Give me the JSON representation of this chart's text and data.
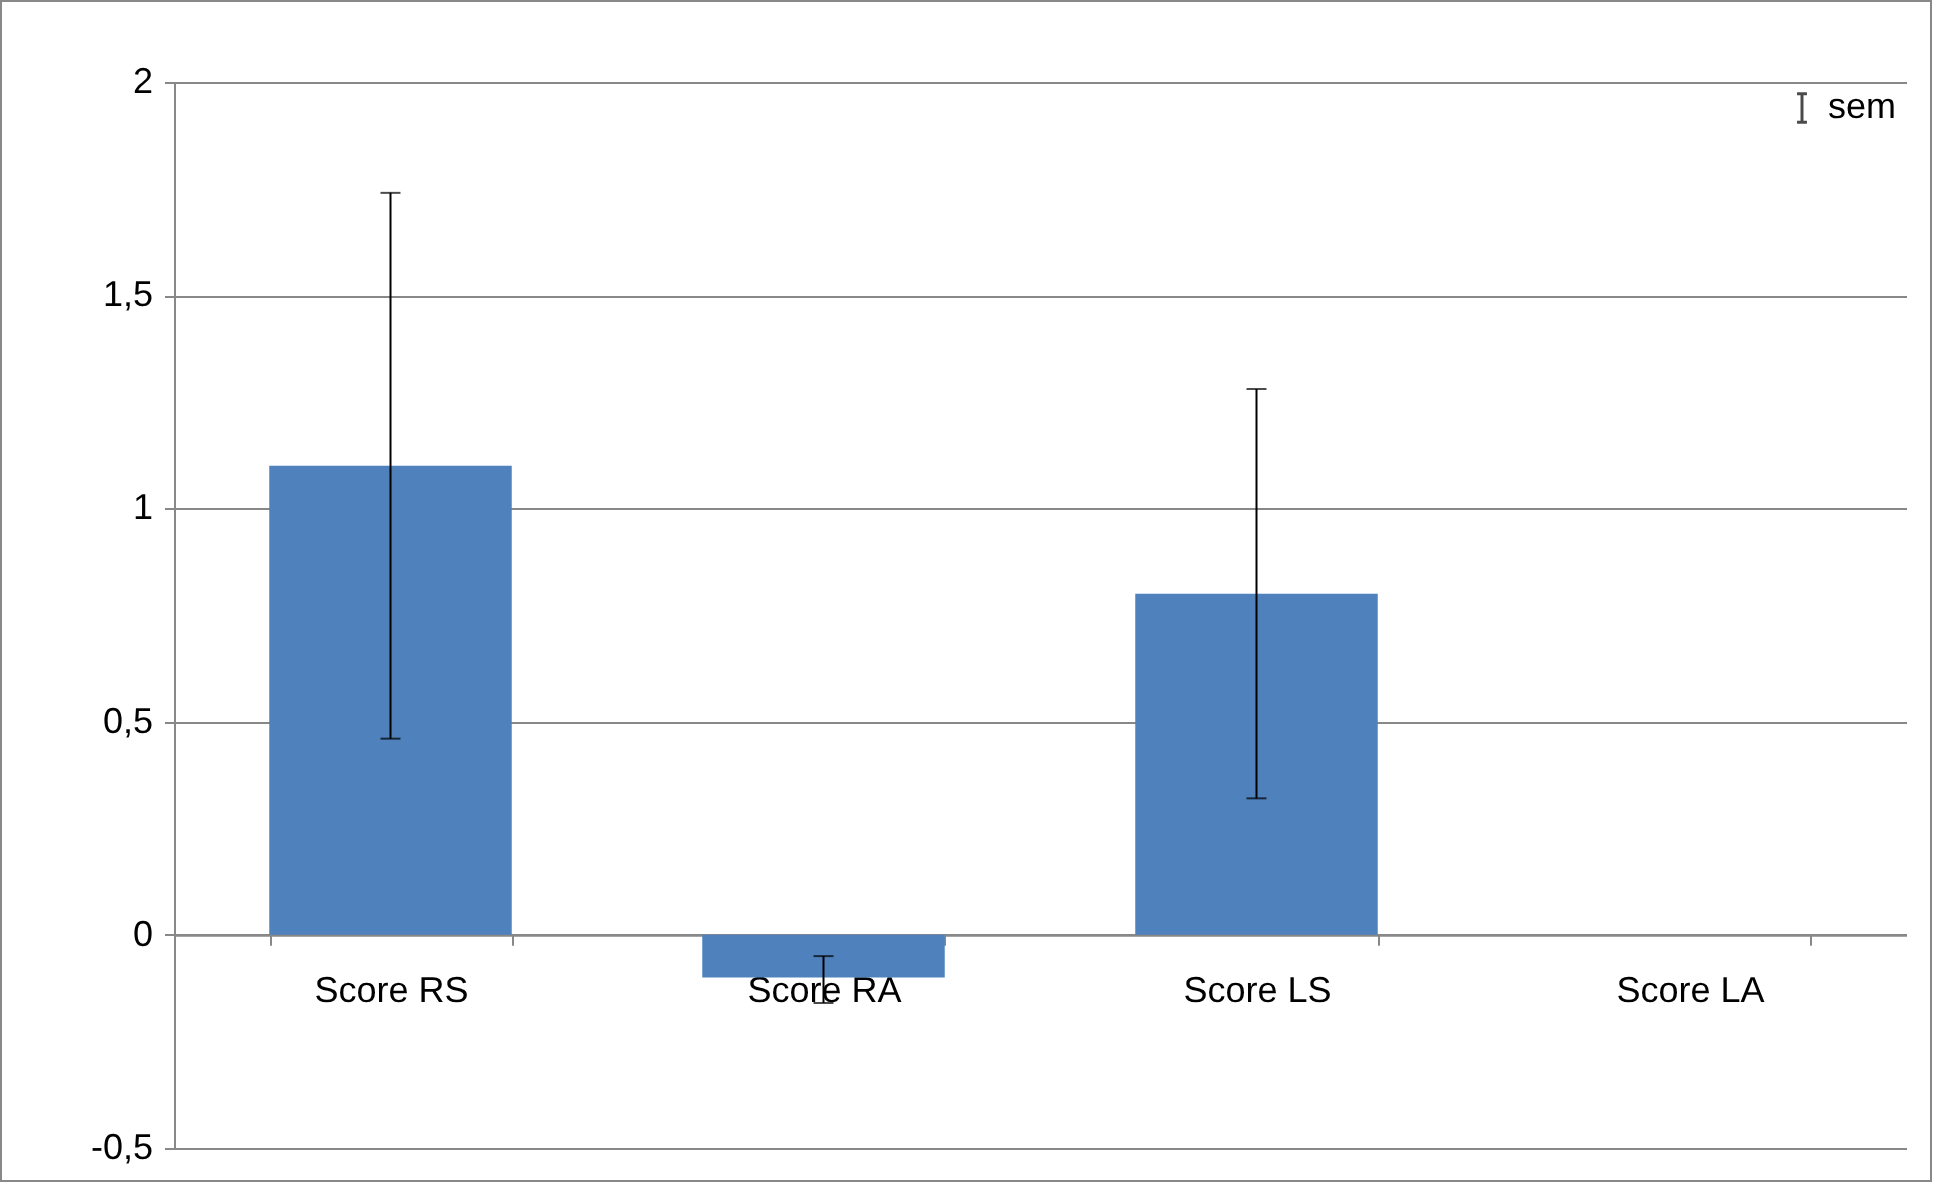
{
  "chart_data": {
    "type": "bar",
    "categories": [
      "Score RS",
      "Score RA",
      "Score LS",
      "Score LA"
    ],
    "values": [
      1.1,
      -0.1,
      0.8,
      0
    ],
    "errors": [
      [
        0.46,
        1.74
      ],
      [
        -0.16,
        -0.05
      ],
      [
        0.32,
        1.28
      ],
      null
    ],
    "color": "#4f81bd",
    "ylim": [
      -0.5,
      2
    ],
    "yticks": [
      {
        "value": -0.5,
        "label": "-0,5"
      },
      {
        "value": 0,
        "label": "0"
      },
      {
        "value": 0.5,
        "label": "0,5"
      },
      {
        "value": 1,
        "label": "1"
      },
      {
        "value": 1.5,
        "label": "1,5"
      },
      {
        "value": 2,
        "label": "2"
      }
    ],
    "grid": "y",
    "annotations": [
      "sem"
    ]
  }
}
